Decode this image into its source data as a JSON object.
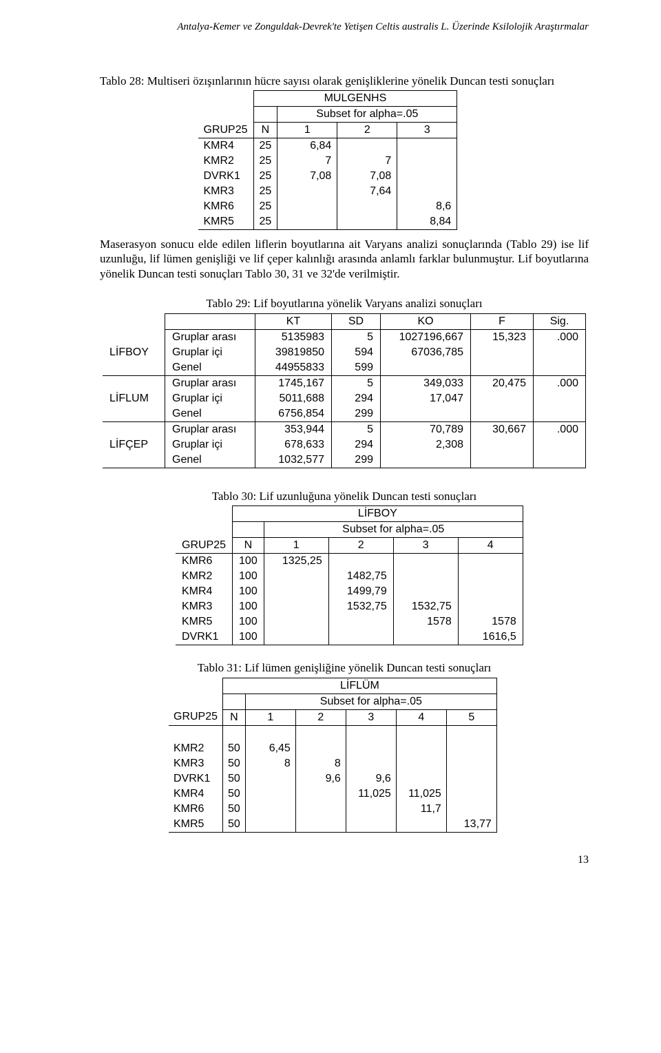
{
  "running_head_a": "Antalya-Kemer ve Zonguldak-Devrek'te Yetişen ",
  "running_head_i": "Celtis australis",
  "running_head_b": " L. Üzerinde Ksilolojik Araştırmalar",
  "t28": {
    "title": "Tablo 28:  Multiseri özışınlarının hücre sayısı olarak genişliklerine yönelik Duncan testi sonuçları",
    "name": "MULGENHS",
    "subset": "Subset for alpha=.05",
    "cols": [
      "GRUP25",
      "N",
      "1",
      "2",
      "3"
    ],
    "rows": [
      {
        "g": "KMR4",
        "n": "25",
        "v": [
          "6,84",
          "",
          ""
        ]
      },
      {
        "g": "KMR2",
        "n": "25",
        "v": [
          "7",
          "7",
          ""
        ]
      },
      {
        "g": "DVRK1",
        "n": "25",
        "v": [
          "7,08",
          "7,08",
          ""
        ]
      },
      {
        "g": "KMR3",
        "n": "25",
        "v": [
          "",
          "7,64",
          ""
        ]
      },
      {
        "g": "KMR6",
        "n": "25",
        "v": [
          "",
          "",
          "8,6"
        ]
      },
      {
        "g": "KMR5",
        "n": "25",
        "v": [
          "",
          "",
          "8,84"
        ]
      }
    ]
  },
  "para1": "Maserasyon sonucu elde edilen liflerin boyutlarına ait Varyans analizi sonuçlarında (Tablo 29) ise lif uzunluğu, lif lümen genişliği ve lif çeper kalınlığı arasında anlamlı farklar bulunmuştur. Lif boyutlarına yönelik Duncan testi sonuçları Tablo 30, 31 ve 32'de verilmiştir.",
  "t29": {
    "title": "Tablo 29: Lif boyutlarına yönelik Varyans analizi sonuçları",
    "head": [
      "",
      "",
      "KT",
      "SD",
      "KO",
      "F",
      "Sig."
    ],
    "groups": [
      {
        "label": "LİFBOY",
        "rows": [
          {
            "l": "Gruplar arası",
            "v": [
              "5135983",
              "5",
              "1027196,667",
              "15,323",
              ".000"
            ]
          },
          {
            "l": "Gruplar içi",
            "v": [
              "39819850",
              "594",
              "67036,785",
              "",
              ""
            ]
          },
          {
            "l": "Genel",
            "v": [
              "44955833",
              "599",
              "",
              "",
              ""
            ]
          }
        ]
      },
      {
        "label": "LİFLUM",
        "rows": [
          {
            "l": "Gruplar arası",
            "v": [
              "1745,167",
              "5",
              "349,033",
              "20,475",
              ".000"
            ]
          },
          {
            "l": "Gruplar içi",
            "v": [
              "5011,688",
              "294",
              "17,047",
              "",
              ""
            ]
          },
          {
            "l": "Genel",
            "v": [
              "6756,854",
              "299",
              "",
              "",
              ""
            ]
          }
        ]
      },
      {
        "label": "LİFÇEP",
        "rows": [
          {
            "l": "Gruplar arası",
            "v": [
              "353,944",
              "5",
              "70,789",
              "30,667",
              ".000"
            ]
          },
          {
            "l": "Gruplar içi",
            "v": [
              "678,633",
              "294",
              "2,308",
              "",
              ""
            ]
          },
          {
            "l": "Genel",
            "v": [
              "1032,577",
              "299",
              "",
              "",
              ""
            ]
          }
        ]
      }
    ]
  },
  "t30": {
    "title": "Tablo 30: Lif uzunluğuna yönelik Duncan testi sonuçları",
    "name": "LİFBOY",
    "subset": "Subset for alpha=.05",
    "cols": [
      "GRUP25",
      "N",
      "1",
      "2",
      "3",
      "4"
    ],
    "rows": [
      {
        "g": "KMR6",
        "n": "100",
        "v": [
          "1325,25",
          "",
          "",
          ""
        ]
      },
      {
        "g": "KMR2",
        "n": "100",
        "v": [
          "",
          "1482,75",
          "",
          ""
        ]
      },
      {
        "g": "KMR4",
        "n": "100",
        "v": [
          "",
          "1499,79",
          "",
          ""
        ]
      },
      {
        "g": "KMR3",
        "n": "100",
        "v": [
          "",
          "1532,75",
          "1532,75",
          ""
        ]
      },
      {
        "g": "KMR5",
        "n": "100",
        "v": [
          "",
          "",
          "1578",
          "1578"
        ]
      },
      {
        "g": "DVRK1",
        "n": "100",
        "v": [
          "",
          "",
          "",
          "1616,5"
        ]
      }
    ]
  },
  "t31": {
    "title": "Tablo 31: Lif lümen genişliğine yönelik Duncan testi sonuçları",
    "name": "LİFLÜM",
    "subset": "Subset for alpha=.05",
    "cols": [
      "GRUP25",
      "N",
      "1",
      "2",
      "3",
      "4",
      "5"
    ],
    "rows": [
      {
        "g": "KMR2",
        "n": "50",
        "v": [
          "6,45",
          "",
          "",
          "",
          ""
        ]
      },
      {
        "g": "KMR3",
        "n": "50",
        "v": [
          "8",
          "8",
          "",
          "",
          ""
        ]
      },
      {
        "g": "DVRK1",
        "n": "50",
        "v": [
          "",
          "9,6",
          "9,6",
          "",
          ""
        ]
      },
      {
        "g": "KMR4",
        "n": "50",
        "v": [
          "",
          "",
          "11,025",
          "11,025",
          ""
        ]
      },
      {
        "g": "KMR6",
        "n": "50",
        "v": [
          "",
          "",
          "",
          "11,7",
          ""
        ]
      },
      {
        "g": "KMR5",
        "n": "50",
        "v": [
          "",
          "",
          "",
          "",
          "13,77"
        ]
      }
    ]
  },
  "page_num": "13"
}
